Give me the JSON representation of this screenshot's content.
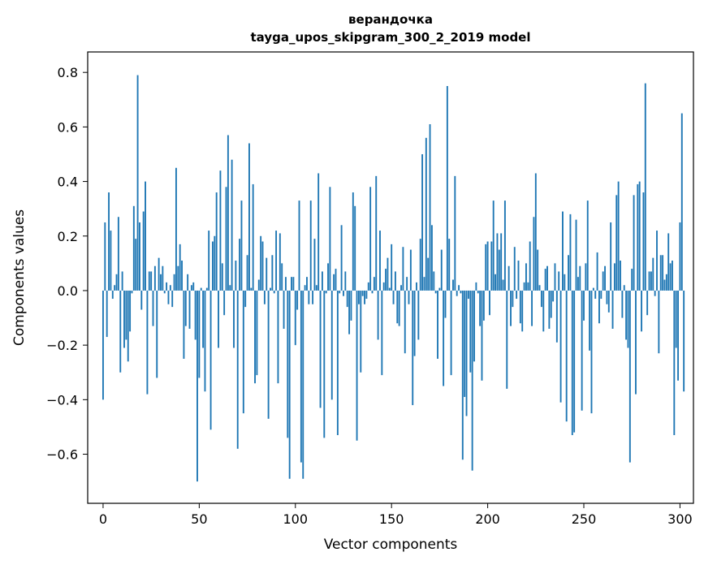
{
  "chart_data": {
    "type": "bar",
    "title": "верандочка",
    "subtitle": "tayga_upos_skipgram_300_2_2019 model",
    "xlabel": "Vector components",
    "ylabel": "Components values",
    "xlim": [
      -8,
      307
    ],
    "ylim": [
      -0.78,
      0.875
    ],
    "xticks": [
      0,
      50,
      100,
      150,
      200,
      250,
      300
    ],
    "xtick_labels": [
      "0",
      "50",
      "100",
      "150",
      "200",
      "250",
      "300"
    ],
    "yticks": [
      -0.6,
      -0.4,
      -0.2,
      0.0,
      0.2,
      0.4,
      0.6,
      0.8
    ],
    "ytick_labels": [
      "−0.6",
      "−0.4",
      "−0.2",
      "0.0",
      "0.2",
      "0.4",
      "0.6",
      "0.8"
    ],
    "grid": false,
    "bar_color": "#1f77b4",
    "values": [
      -0.4,
      0.25,
      -0.17,
      0.36,
      0.22,
      -0.03,
      0.02,
      0.06,
      0.27,
      -0.3,
      0.07,
      -0.21,
      -0.18,
      -0.26,
      -0.15,
      -0.01,
      0.31,
      0.19,
      0.79,
      0.25,
      -0.07,
      0.29,
      0.4,
      -0.38,
      0.07,
      0.07,
      -0.13,
      0.09,
      -0.32,
      0.12,
      0.06,
      0.09,
      -0.01,
      0.03,
      -0.05,
      0.02,
      -0.06,
      0.06,
      0.45,
      0.09,
      0.17,
      0.11,
      -0.25,
      -0.13,
      0.06,
      -0.14,
      0.02,
      0.03,
      -0.18,
      -0.7,
      -0.32,
      0.01,
      -0.21,
      -0.37,
      0.01,
      0.22,
      -0.51,
      0.18,
      0.2,
      0.36,
      -0.21,
      0.44,
      0.1,
      -0.09,
      0.38,
      0.57,
      0.02,
      0.48,
      -0.21,
      0.11,
      -0.58,
      0.19,
      0.33,
      -0.45,
      -0.06,
      0.13,
      0.54,
      0.01,
      0.39,
      -0.34,
      -0.31,
      0.04,
      0.2,
      0.18,
      -0.05,
      0.12,
      -0.47,
      0.01,
      0.13,
      -0.01,
      0.22,
      -0.34,
      0.21,
      0.1,
      -0.14,
      0.05,
      -0.54,
      -0.69,
      0.05,
      0.05,
      -0.2,
      -0.07,
      0.33,
      -0.63,
      -0.69,
      0.02,
      0.05,
      -0.05,
      0.33,
      -0.05,
      0.19,
      0.02,
      0.43,
      -0.43,
      0.07,
      -0.54,
      -0.01,
      0.1,
      0.38,
      -0.4,
      0.06,
      0.08,
      -0.53,
      -0.01,
      0.24,
      -0.02,
      0.07,
      -0.06,
      -0.16,
      -0.11,
      0.36,
      0.31,
      -0.55,
      -0.05,
      -0.3,
      -0.02,
      -0.05,
      -0.03,
      0.03,
      0.38,
      -0.01,
      0.05,
      0.42,
      -0.18,
      0.22,
      -0.31,
      0.03,
      0.08,
      0.12,
      0.01,
      0.17,
      -0.05,
      0.07,
      -0.12,
      -0.13,
      0.02,
      0.16,
      -0.23,
      0.05,
      -0.05,
      0.15,
      -0.42,
      -0.24,
      0.03,
      -0.18,
      0.19,
      0.5,
      0.05,
      0.56,
      0.12,
      0.61,
      0.24,
      0.07,
      -0.01,
      -0.25,
      0.01,
      0.15,
      -0.35,
      -0.1,
      0.75,
      0.19,
      -0.31,
      0.04,
      0.42,
      -0.02,
      0.02,
      -0.01,
      -0.62,
      -0.39,
      -0.46,
      -0.03,
      -0.3,
      -0.66,
      -0.26,
      0.03,
      -0.01,
      -0.13,
      -0.33,
      -0.11,
      0.17,
      0.18,
      -0.09,
      0.18,
      0.33,
      0.06,
      0.21,
      0.15,
      0.21,
      0.04,
      0.33,
      -0.36,
      0.09,
      -0.13,
      -0.06,
      0.16,
      -0.03,
      0.11,
      -0.12,
      -0.15,
      0.03,
      0.1,
      0.03,
      0.18,
      -0.13,
      0.27,
      0.43,
      0.15,
      0.02,
      -0.06,
      -0.15,
      0.08,
      0.09,
      -0.14,
      -0.1,
      -0.04,
      0.1,
      -0.19,
      0.07,
      -0.41,
      0.29,
      0.06,
      -0.48,
      0.13,
      0.28,
      -0.53,
      -0.52,
      0.26,
      0.05,
      0.09,
      -0.44,
      -0.11,
      0.1,
      0.33,
      -0.22,
      -0.45,
      0.01,
      -0.03,
      0.14,
      -0.12,
      -0.03,
      0.07,
      0.09,
      -0.05,
      -0.08,
      0.25,
      -0.14,
      0.1,
      0.35,
      0.4,
      0.11,
      -0.1,
      0.02,
      -0.18,
      -0.21,
      -0.63,
      0.08,
      0.35,
      -0.38,
      0.39,
      0.4,
      -0.15,
      0.36,
      0.76,
      -0.09,
      0.07,
      0.07,
      0.12,
      -0.02,
      0.22,
      -0.23,
      0.13,
      0.13,
      0.04,
      0.06,
      0.21,
      0.1,
      0.11,
      -0.53,
      -0.21,
      -0.33,
      0.25,
      0.65,
      -0.37
    ]
  }
}
